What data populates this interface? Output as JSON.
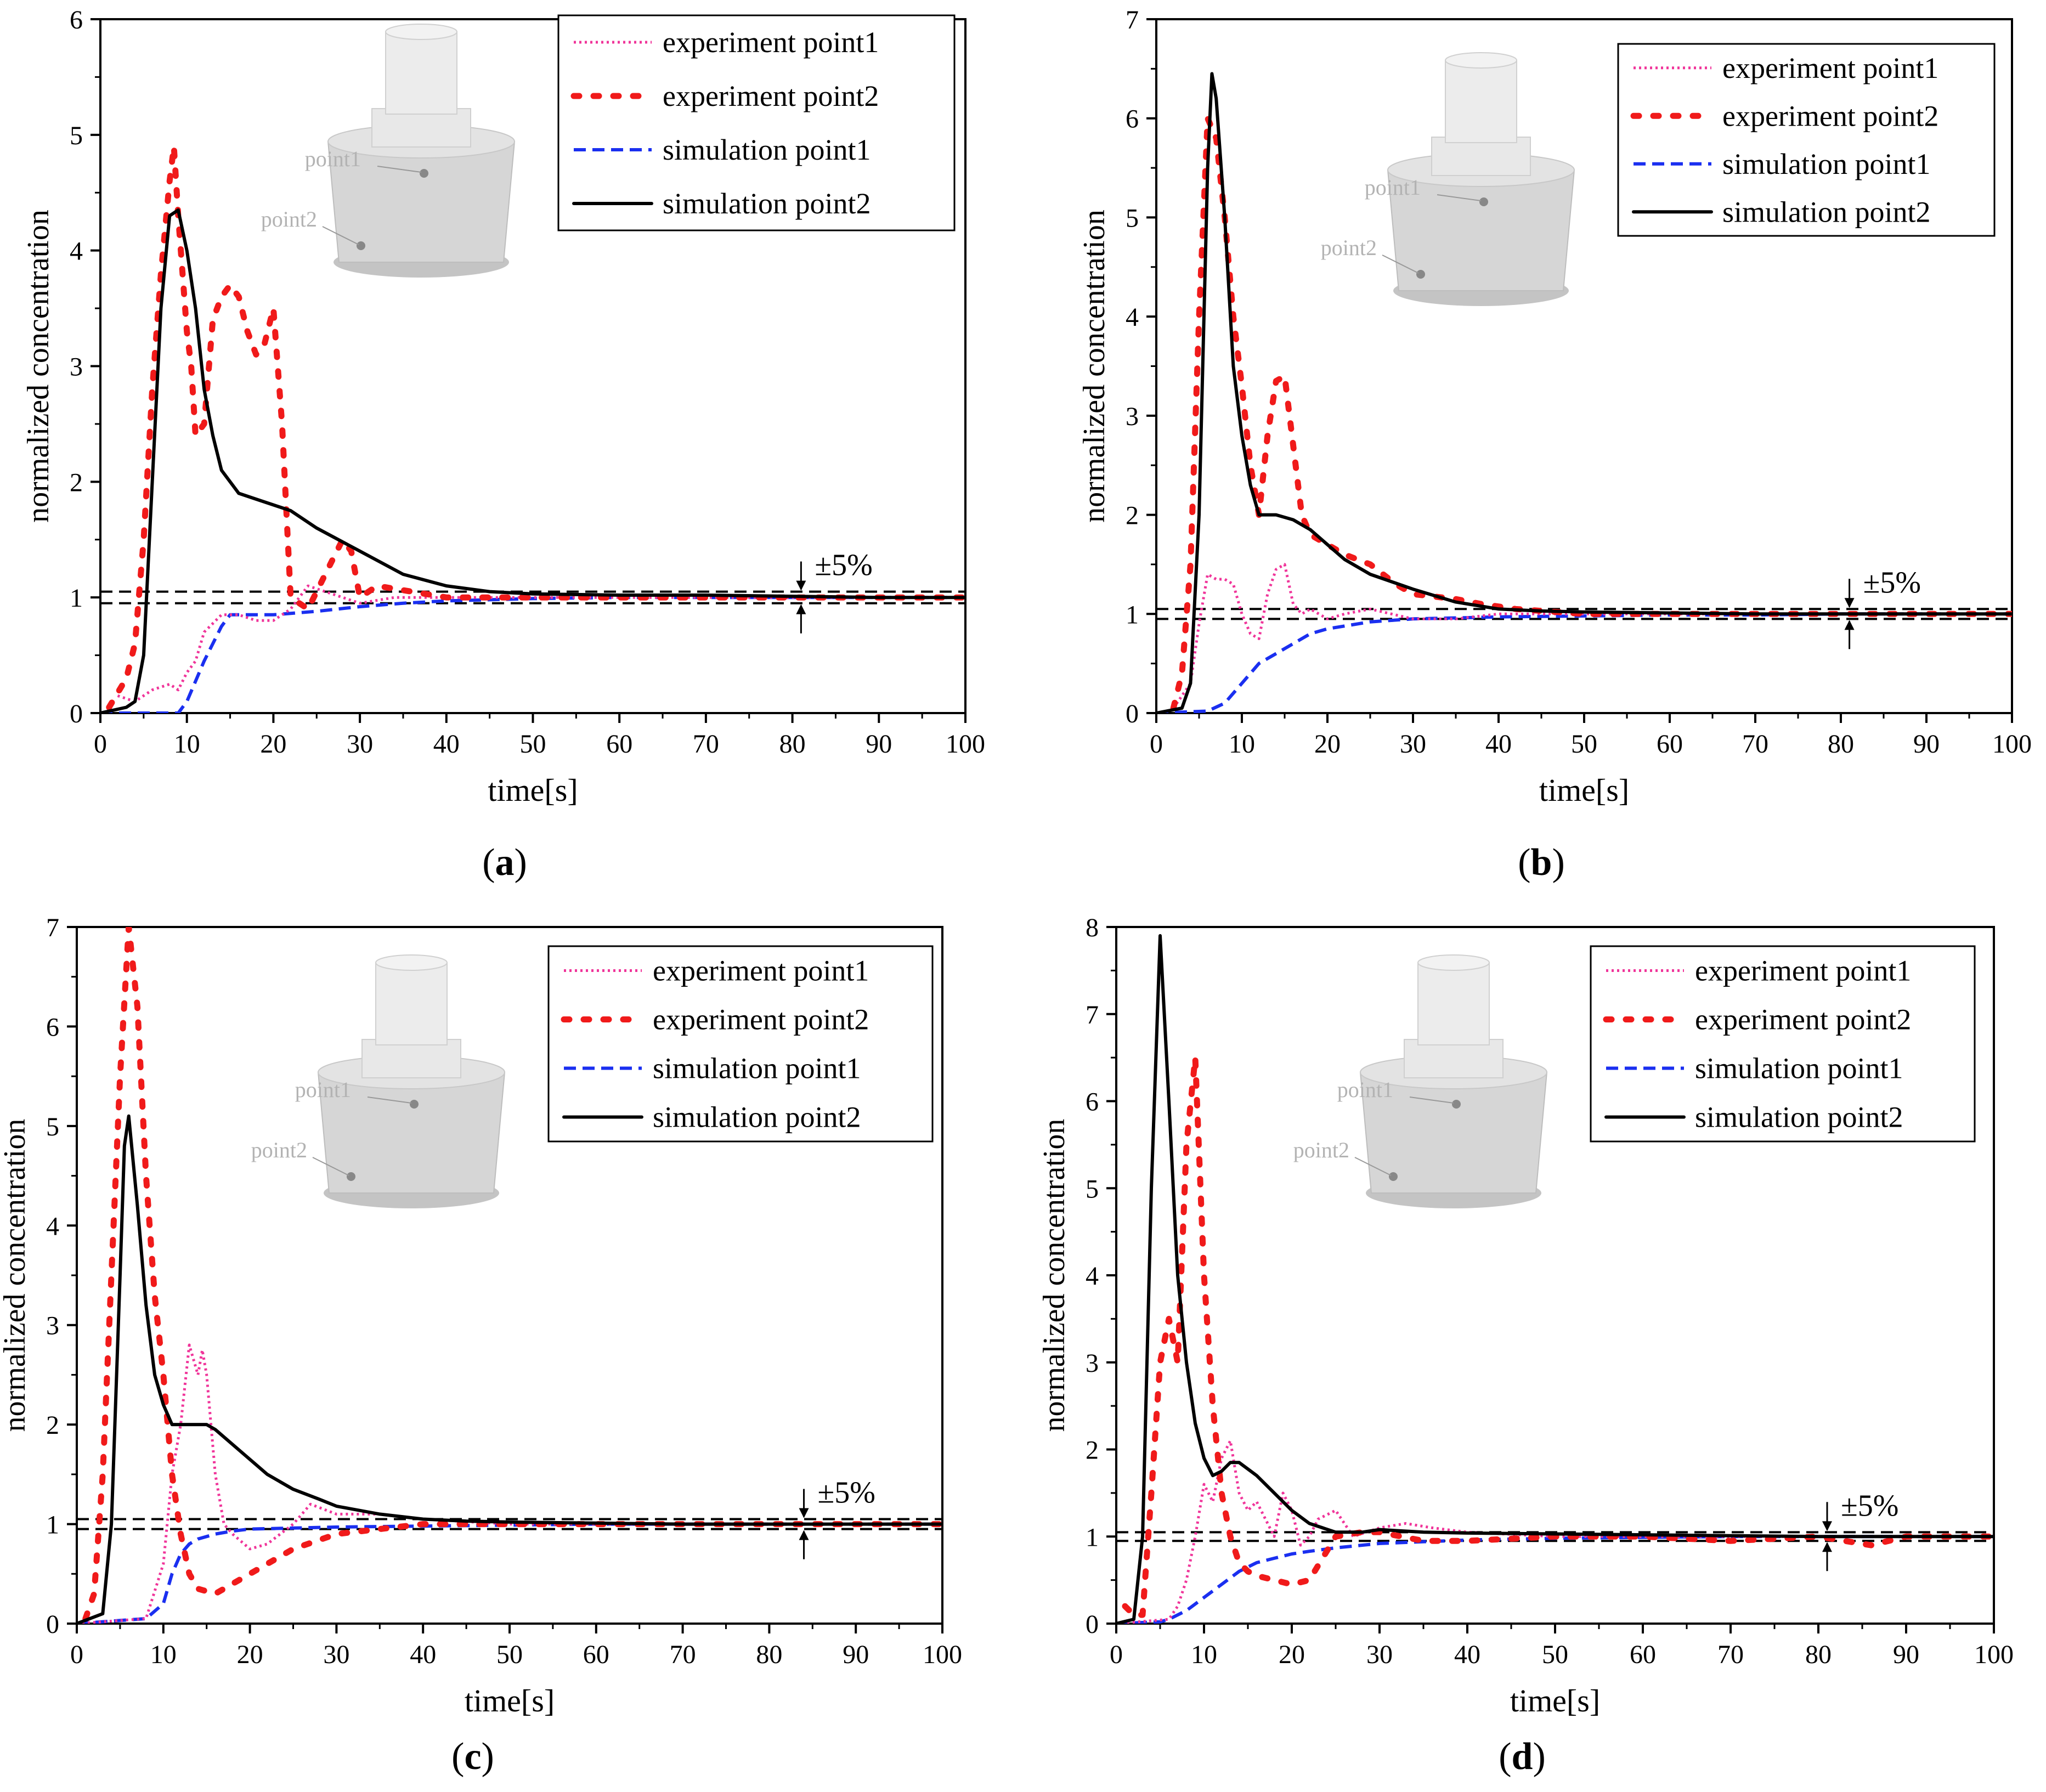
{
  "figure": {
    "colors": {
      "experiment_point1": "#f0359a",
      "experiment_point2": "#f01a1a",
      "simulation_point1": "#1a2ff0",
      "simulation_point2": "#000000",
      "band": "#000000",
      "inset_body": "#d6d6d6",
      "inset_label": "#b3b3b3"
    },
    "legend": [
      "experiment point1",
      "experiment point2",
      "simulation point1",
      "simulation point2"
    ],
    "inset_labels": [
      "point1",
      "point2"
    ],
    "band_label": "±5%"
  },
  "chart_data": [
    {
      "type": "line",
      "panel_label": "a",
      "xlabel": "time[s]",
      "ylabel": "normalized concentration",
      "xlim": [
        0,
        100
      ],
      "ylim": [
        0,
        6
      ],
      "xticks": [
        0,
        10,
        20,
        30,
        40,
        50,
        60,
        70,
        80,
        90,
        100
      ],
      "yticks": [
        0,
        1,
        2,
        3,
        4,
        5,
        6
      ],
      "band": [
        0.95,
        1.05
      ],
      "band_marker_x": 81,
      "series": [
        {
          "name": "experiment point1",
          "x": [
            2,
            4,
            6,
            8,
            9,
            10,
            11,
            12,
            14,
            16,
            18,
            20,
            22,
            24,
            26,
            28,
            30,
            34,
            40,
            50,
            60,
            70,
            80,
            90,
            100
          ],
          "y": [
            0.15,
            0.1,
            0.2,
            0.25,
            0.2,
            0.35,
            0.45,
            0.7,
            0.85,
            0.85,
            0.8,
            0.8,
            0.9,
            1.1,
            1.05,
            1.0,
            0.95,
            1.0,
            1.0,
            1.0,
            1.0,
            1.0,
            1.0,
            1.0,
            1.0
          ]
        },
        {
          "name": "experiment point2",
          "x": [
            1,
            3,
            4,
            5,
            6,
            7,
            8,
            8.5,
            9,
            9.5,
            10,
            10.5,
            11,
            12,
            13,
            14,
            15,
            16,
            17,
            18,
            19,
            20,
            21,
            22,
            24,
            26,
            28,
            29,
            30,
            32,
            36,
            40,
            45,
            50,
            60,
            70,
            80,
            90,
            100
          ],
          "y": [
            0.05,
            0.3,
            0.6,
            1.5,
            2.8,
            3.8,
            4.6,
            4.9,
            4.3,
            3.8,
            3.3,
            3.0,
            2.4,
            2.5,
            3.4,
            3.6,
            3.7,
            3.6,
            3.3,
            3.1,
            3.2,
            3.5,
            2.5,
            1.0,
            0.9,
            1.2,
            1.5,
            1.4,
            1.0,
            1.1,
            1.05,
            1.0,
            1.0,
            1.0,
            1.0,
            1.0,
            1.0,
            1.0,
            1.0
          ]
        },
        {
          "name": "simulation point1",
          "x": [
            0,
            9,
            10,
            12,
            14,
            15,
            16,
            18,
            20,
            25,
            30,
            35,
            40,
            50,
            60,
            70,
            80,
            90,
            100
          ],
          "y": [
            0,
            0,
            0.1,
            0.45,
            0.75,
            0.85,
            0.85,
            0.85,
            0.85,
            0.88,
            0.92,
            0.95,
            0.97,
            0.99,
            1.0,
            1.0,
            1.0,
            1.0,
            1.0
          ]
        },
        {
          "name": "simulation point2",
          "x": [
            0,
            3,
            4,
            5,
            6,
            7,
            8,
            9,
            10,
            11,
            12,
            13,
            14,
            16,
            18,
            20,
            22,
            25,
            30,
            35,
            40,
            45,
            50,
            60,
            70,
            80,
            90,
            100
          ],
          "y": [
            0,
            0.05,
            0.1,
            0.5,
            2.0,
            3.5,
            4.3,
            4.35,
            4.0,
            3.5,
            2.8,
            2.4,
            2.1,
            1.9,
            1.85,
            1.8,
            1.75,
            1.6,
            1.4,
            1.2,
            1.1,
            1.05,
            1.03,
            1.02,
            1.02,
            1.01,
            1.0,
            1.0
          ]
        }
      ]
    },
    {
      "type": "line",
      "panel_label": "b",
      "xlabel": "time[s]",
      "ylabel": "normalized concentration",
      "xlim": [
        0,
        100
      ],
      "ylim": [
        0,
        7
      ],
      "xticks": [
        0,
        10,
        20,
        30,
        40,
        50,
        60,
        70,
        80,
        90,
        100
      ],
      "yticks": [
        0,
        1,
        2,
        3,
        4,
        5,
        6,
        7
      ],
      "band": [
        0.95,
        1.05
      ],
      "band_marker_x": 81,
      "series": [
        {
          "name": "experiment point1",
          "x": [
            2,
            4,
            5,
            6,
            7,
            8,
            9,
            10,
            11,
            12,
            13,
            14,
            15,
            16,
            17,
            18,
            20,
            22,
            25,
            30,
            35,
            40,
            50,
            60,
            70,
            80,
            90,
            100
          ],
          "y": [
            0.05,
            0.3,
            0.9,
            1.4,
            1.35,
            1.35,
            1.3,
            1.0,
            0.8,
            0.75,
            1.2,
            1.45,
            1.5,
            1.1,
            1.0,
            1.05,
            0.95,
            1.0,
            1.05,
            0.95,
            0.95,
            1.0,
            1.0,
            1.0,
            1.0,
            1.0,
            1.0,
            1.0
          ]
        },
        {
          "name": "experiment point2",
          "x": [
            2,
            3,
            4,
            5,
            6,
            7,
            8,
            9,
            10,
            11,
            12,
            13,
            14,
            15,
            16,
            17,
            18,
            20,
            22,
            25,
            28,
            30,
            35,
            38,
            42,
            50,
            60,
            70,
            80,
            90,
            100
          ],
          "y": [
            0.05,
            0.4,
            1.5,
            4.0,
            6.0,
            5.8,
            5.0,
            4.0,
            3.3,
            2.5,
            2.0,
            2.8,
            3.35,
            3.4,
            2.7,
            2.0,
            1.8,
            1.7,
            1.6,
            1.5,
            1.3,
            1.2,
            1.15,
            1.1,
            1.05,
            1.0,
            1.0,
            1.0,
            1.0,
            1.0,
            1.0
          ]
        },
        {
          "name": "simulation point1",
          "x": [
            0,
            6,
            8,
            10,
            12,
            14,
            16,
            18,
            20,
            25,
            30,
            40,
            50,
            60,
            70,
            80,
            90,
            100
          ],
          "y": [
            0,
            0.02,
            0.1,
            0.3,
            0.5,
            0.6,
            0.7,
            0.8,
            0.85,
            0.92,
            0.95,
            0.97,
            0.98,
            0.99,
            0.99,
            1.0,
            1.0,
            1.0
          ]
        },
        {
          "name": "simulation point2",
          "x": [
            0,
            3,
            4,
            5,
            6,
            6.5,
            7,
            8,
            9,
            10,
            11,
            12,
            13,
            14,
            16,
            18,
            20,
            22,
            25,
            30,
            35,
            40,
            45,
            50,
            60,
            70,
            80,
            90,
            100
          ],
          "y": [
            0,
            0.05,
            0.3,
            2.0,
            5.5,
            6.45,
            6.2,
            5.0,
            3.5,
            2.8,
            2.3,
            2.0,
            2.0,
            2.0,
            1.95,
            1.85,
            1.7,
            1.55,
            1.4,
            1.25,
            1.12,
            1.05,
            1.03,
            1.02,
            1.01,
            1.0,
            1.0,
            1.0,
            1.0
          ]
        }
      ]
    },
    {
      "type": "line",
      "panel_label": "c",
      "xlabel": "time[s]",
      "ylabel": "normalized concentration",
      "xlim": [
        0,
        100
      ],
      "ylim": [
        0,
        7
      ],
      "xticks": [
        0,
        10,
        20,
        30,
        40,
        50,
        60,
        70,
        80,
        90,
        100
      ],
      "yticks": [
        0,
        1,
        2,
        3,
        4,
        5,
        6,
        7
      ],
      "band": [
        0.95,
        1.05
      ],
      "band_marker_x": 84,
      "series": [
        {
          "name": "experiment point1",
          "x": [
            0,
            8,
            10,
            11,
            12,
            13,
            14,
            14.5,
            15,
            16,
            17,
            18,
            20,
            22,
            25,
            27,
            30,
            35,
            40,
            50,
            60,
            70,
            80,
            90,
            100
          ],
          "y": [
            0,
            0.05,
            0.6,
            1.5,
            2.0,
            2.8,
            2.5,
            2.75,
            2.5,
            1.5,
            1.0,
            0.9,
            0.75,
            0.8,
            1.0,
            1.2,
            1.1,
            1.1,
            1.05,
            1.0,
            1.0,
            1.0,
            1.0,
            1.0,
            1.0
          ]
        },
        {
          "name": "experiment point2",
          "x": [
            1,
            2,
            3,
            4,
            5,
            6,
            7,
            8,
            9,
            10,
            11,
            12,
            13,
            14,
            16,
            18,
            20,
            25,
            30,
            35,
            40,
            50,
            60,
            70,
            80,
            90,
            100
          ],
          "y": [
            0.05,
            0.3,
            1.5,
            3.5,
            5.5,
            7.0,
            6.2,
            4.5,
            3.3,
            2.5,
            1.5,
            0.9,
            0.5,
            0.35,
            0.3,
            0.4,
            0.5,
            0.75,
            0.9,
            0.95,
            1.0,
            1.0,
            1.0,
            1.0,
            1.0,
            1.0,
            1.0
          ]
        },
        {
          "name": "simulation point1",
          "x": [
            0,
            8,
            10,
            11,
            12,
            13,
            14,
            16,
            18,
            20,
            25,
            30,
            40,
            50,
            60,
            70,
            80,
            90,
            100
          ],
          "y": [
            0,
            0.05,
            0.2,
            0.5,
            0.7,
            0.8,
            0.85,
            0.9,
            0.93,
            0.95,
            0.96,
            0.97,
            0.98,
            0.99,
            1.0,
            1.0,
            1.0,
            1.0,
            1.0
          ]
        },
        {
          "name": "simulation point2",
          "x": [
            0,
            3,
            4,
            5,
            5.5,
            6,
            7,
            8,
            9,
            10,
            11,
            12,
            13,
            14,
            15,
            16,
            18,
            20,
            22,
            25,
            28,
            30,
            35,
            40,
            45,
            50,
            60,
            70,
            80,
            90,
            100
          ],
          "y": [
            0,
            0.1,
            1.0,
            3.5,
            4.8,
            5.1,
            4.2,
            3.2,
            2.5,
            2.2,
            2.0,
            2.0,
            2.0,
            2.0,
            2.0,
            1.95,
            1.8,
            1.65,
            1.5,
            1.35,
            1.25,
            1.18,
            1.1,
            1.05,
            1.03,
            1.02,
            1.01,
            1.0,
            1.0,
            1.0,
            1.0
          ]
        }
      ]
    },
    {
      "type": "line",
      "panel_label": "d",
      "xlabel": "time[s]",
      "ylabel": "normalized concentration",
      "xlim": [
        0,
        100
      ],
      "ylim": [
        0,
        8
      ],
      "xticks": [
        0,
        10,
        20,
        30,
        40,
        50,
        60,
        70,
        80,
        90,
        100
      ],
      "yticks": [
        0,
        1,
        2,
        3,
        4,
        5,
        6,
        7,
        8
      ],
      "band": [
        0.95,
        1.05
      ],
      "band_marker_x": 81,
      "series": [
        {
          "name": "experiment point1",
          "x": [
            0,
            6,
            7,
            8,
            9,
            10,
            11,
            12,
            13,
            14,
            15,
            16,
            17,
            18,
            19,
            20,
            21,
            22,
            23,
            25,
            27,
            30,
            33,
            36,
            40,
            50,
            60,
            70,
            80,
            90,
            100
          ],
          "y": [
            0,
            0.05,
            0.2,
            0.5,
            1.0,
            1.6,
            1.4,
            1.9,
            2.1,
            1.5,
            1.3,
            1.4,
            1.2,
            1.0,
            1.5,
            1.3,
            0.9,
            1.0,
            1.2,
            1.3,
            1.0,
            1.1,
            1.15,
            1.1,
            1.05,
            1.0,
            1.0,
            1.0,
            1.0,
            1.0,
            1.0
          ]
        },
        {
          "name": "experiment point2",
          "x": [
            1,
            2,
            3,
            4,
            5,
            6,
            7,
            8,
            9,
            10,
            11,
            12,
            13,
            14,
            15,
            16,
            18,
            20,
            22,
            25,
            28,
            30,
            35,
            40,
            50,
            60,
            70,
            80,
            86,
            90,
            100
          ],
          "y": [
            0.2,
            0.1,
            0.1,
            1.5,
            3.0,
            3.5,
            3.0,
            5.5,
            6.5,
            4.0,
            2.5,
            1.5,
            1.0,
            0.7,
            0.6,
            0.55,
            0.5,
            0.45,
            0.5,
            1.0,
            1.05,
            1.05,
            0.95,
            0.95,
            1.0,
            1.0,
            0.95,
            1.0,
            0.9,
            1.0,
            1.0
          ]
        },
        {
          "name": "simulation point1",
          "x": [
            0,
            5,
            6,
            8,
            10,
            12,
            14,
            16,
            18,
            20,
            22,
            25,
            30,
            40,
            50,
            60,
            70,
            80,
            90,
            100
          ],
          "y": [
            0,
            0.02,
            0.05,
            0.15,
            0.3,
            0.45,
            0.6,
            0.7,
            0.75,
            0.8,
            0.83,
            0.87,
            0.92,
            0.96,
            0.98,
            0.99,
            1.0,
            1.0,
            1.0,
            1.0
          ]
        },
        {
          "name": "simulation point2",
          "x": [
            0,
            2,
            3,
            4,
            5,
            6,
            7,
            8,
            9,
            10,
            11,
            12,
            13,
            14,
            16,
            18,
            20,
            22,
            25,
            28,
            30,
            35,
            40,
            50,
            60,
            70,
            80,
            90,
            100
          ],
          "y": [
            0,
            0.05,
            1.0,
            5.0,
            7.9,
            6.0,
            4.0,
            3.0,
            2.3,
            1.9,
            1.7,
            1.75,
            1.85,
            1.85,
            1.7,
            1.5,
            1.3,
            1.15,
            1.05,
            1.05,
            1.08,
            1.05,
            1.04,
            1.03,
            1.02,
            1.01,
            1.0,
            1.0,
            1.0
          ]
        }
      ]
    }
  ]
}
